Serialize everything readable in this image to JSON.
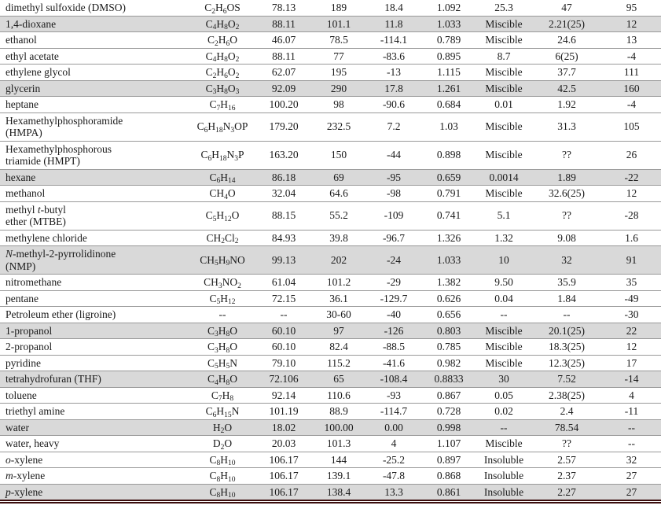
{
  "page": {
    "background": "#ffffff"
  },
  "table": {
    "text_color": "#1a1a1a",
    "row_separator_color": "#999999",
    "shaded_row_color": "#d9d9d9",
    "bottom_border_color": "#3c0e0e",
    "rows": [
      {
        "name": "dimethyl sulfoxide (DMSO)",
        "formula": "C2H6OS",
        "values": [
          "78.13",
          "189",
          "18.4",
          "1.092",
          "25.3",
          "47",
          "95"
        ],
        "shaded": false
      },
      {
        "name": "1,4-dioxane",
        "formula": "C4H8O2",
        "values": [
          "88.11",
          "101.1",
          "11.8",
          "1.033",
          "Miscible",
          "2.21(25)",
          "12"
        ],
        "shaded": true
      },
      {
        "name": "ethanol",
        "formula": "C2H6O",
        "values": [
          "46.07",
          "78.5",
          "-114.1",
          "0.789",
          "Miscible",
          "24.6",
          "13"
        ],
        "shaded": false
      },
      {
        "name": "ethyl acetate",
        "formula": "C4H8O2",
        "values": [
          "88.11",
          "77",
          "-83.6",
          "0.895",
          "8.7",
          "6(25)",
          "-4"
        ],
        "shaded": false
      },
      {
        "name": "ethylene glycol",
        "formula": "C2H6O2",
        "values": [
          "62.07",
          "195",
          "-13",
          "1.115",
          "Miscible",
          "37.7",
          "111"
        ],
        "shaded": false
      },
      {
        "name": "glycerin",
        "formula": "C3H8O3",
        "values": [
          "92.09",
          "290",
          "17.8",
          "1.261",
          "Miscible",
          "42.5",
          "160"
        ],
        "shaded": true
      },
      {
        "name": "heptane",
        "formula": "C7H16",
        "values": [
          "100.20",
          "98",
          "-90.6",
          "0.684",
          "0.01",
          "1.92",
          "-4"
        ],
        "shaded": false
      },
      {
        "name": "Hexamethylphosphoramide\n(HMPA)",
        "formula": "C6H18N3OP",
        "values": [
          "179.20",
          "232.5",
          "7.2",
          "1.03",
          "Miscible",
          "31.3",
          "105"
        ],
        "shaded": false
      },
      {
        "name": "Hexamethylphosphorous\ntriamide (HMPT)",
        "formula": "C6H18N3P",
        "values": [
          "163.20",
          "150",
          "-44",
          "0.898",
          "Miscible",
          "??",
          "26"
        ],
        "shaded": false
      },
      {
        "name": "hexane",
        "formula": "C6H14",
        "values": [
          "86.18",
          "69",
          "-95",
          "0.659",
          "0.0014",
          "1.89",
          "-22"
        ],
        "shaded": true
      },
      {
        "name": "methanol",
        "formula": "CH4O",
        "values": [
          "32.04",
          "64.6",
          "-98",
          "0.791",
          "Miscible",
          "32.6(25)",
          "12"
        ],
        "shaded": false
      },
      {
        "name": "methyl *t*-butyl\nether (MTBE)",
        "formula": "C5H12O",
        "values": [
          "88.15",
          "55.2",
          "-109",
          "0.741",
          "5.1",
          "??",
          "-28"
        ],
        "shaded": false
      },
      {
        "name": "methylene chloride",
        "formula": "CH2Cl2",
        "values": [
          "84.93",
          "39.8",
          "-96.7",
          "1.326",
          "1.32",
          "9.08",
          "1.6"
        ],
        "shaded": false
      },
      {
        "name": "*N*-methyl-2-pyrrolidinone\n(NMP)",
        "formula": "CH5H9NO",
        "values": [
          "99.13",
          "202",
          "-24",
          "1.033",
          "10",
          "32",
          "91"
        ],
        "shaded": true
      },
      {
        "name": "nitromethane",
        "formula": "CH3NO2",
        "values": [
          "61.04",
          "101.2",
          "-29",
          "1.382",
          "9.50",
          "35.9",
          "35"
        ],
        "shaded": false
      },
      {
        "name": "pentane",
        "formula": "C5H12",
        "values": [
          "72.15",
          "36.1",
          "-129.7",
          "0.626",
          "0.04",
          "1.84",
          "-49"
        ],
        "shaded": false
      },
      {
        "name": "Petroleum ether (ligroine)",
        "formula": "--",
        "values": [
          "--",
          "30-60",
          "-40",
          "0.656",
          "--",
          "--",
          "-30"
        ],
        "shaded": false
      },
      {
        "name": "1-propanol",
        "formula": "C3H8O",
        "values": [
          "60.10",
          "97",
          "-126",
          "0.803",
          "Miscible",
          "20.1(25)",
          "22"
        ],
        "shaded": true
      },
      {
        "name": "2-propanol",
        "formula": "C3H8O",
        "values": [
          "60.10",
          "82.4",
          "-88.5",
          "0.785",
          "Miscible",
          "18.3(25)",
          "12"
        ],
        "shaded": false
      },
      {
        "name": "pyridine",
        "formula": "C5H5N",
        "values": [
          "79.10",
          "115.2",
          "-41.6",
          "0.982",
          "Miscible",
          "12.3(25)",
          "17"
        ],
        "shaded": false
      },
      {
        "name": "tetrahydrofuran (THF)",
        "formula": "C4H8O",
        "values": [
          "72.106",
          "65",
          "-108.4",
          "0.8833",
          "30",
          "7.52",
          "-14"
        ],
        "shaded": true
      },
      {
        "name": "toluene",
        "formula": "C7H8",
        "values": [
          "92.14",
          "110.6",
          "-93",
          "0.867",
          "0.05",
          "2.38(25)",
          "4"
        ],
        "shaded": false
      },
      {
        "name": "triethyl amine",
        "formula": "C6H15N",
        "values": [
          "101.19",
          "88.9",
          "-114.7",
          "0.728",
          "0.02",
          "2.4",
          "-11"
        ],
        "shaded": false
      },
      {
        "name": "water",
        "formula": "H2O",
        "values": [
          "18.02",
          "100.00",
          "0.00",
          "0.998",
          "--",
          "78.54",
          "--"
        ],
        "shaded": true
      },
      {
        "name": "water, heavy",
        "formula": "D2O",
        "values": [
          "20.03",
          "101.3",
          "4",
          "1.107",
          "Miscible",
          "??",
          "--"
        ],
        "shaded": false
      },
      {
        "name": "*o*-xylene",
        "formula": "C8H10",
        "values": [
          "106.17",
          "144",
          "-25.2",
          "0.897",
          "Insoluble",
          "2.57",
          "32"
        ],
        "shaded": false
      },
      {
        "name": "*m*-xylene",
        "formula": "C8H10",
        "values": [
          "106.17",
          "139.1",
          "-47.8",
          "0.868",
          "Insoluble",
          "2.37",
          "27"
        ],
        "shaded": false
      },
      {
        "name": "*p*-xylene",
        "formula": "C8H10",
        "values": [
          "106.17",
          "138.4",
          "13.3",
          "0.861",
          "Insoluble",
          "2.27",
          "27"
        ],
        "shaded": true
      }
    ]
  }
}
